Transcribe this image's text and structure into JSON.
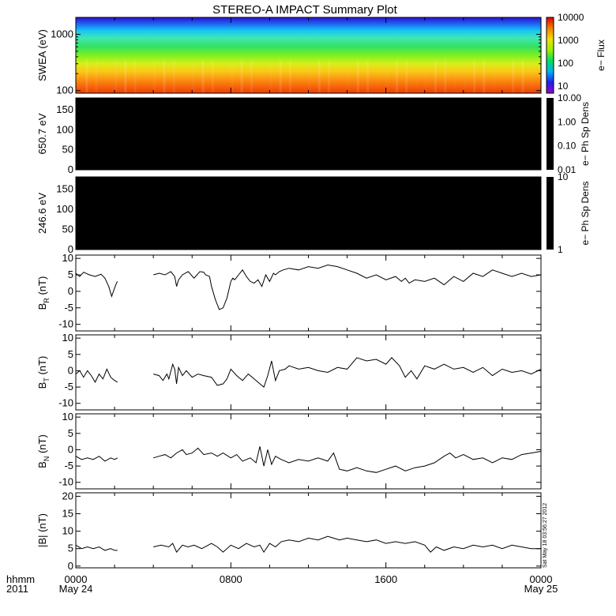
{
  "title": "STEREO-A IMPACT Summary Plot",
  "stamp": "Sat May 18 03:56:27 2012",
  "x_axis": {
    "row1_label": "hhmm",
    "row2_label": "2011",
    "ticks": [
      {
        "t": 0,
        "label": "0000",
        "sub": "May 24"
      },
      {
        "t": 8,
        "label": "0800",
        "sub": ""
      },
      {
        "t": 16,
        "label": "1600",
        "sub": ""
      },
      {
        "t": 24,
        "label": "0000",
        "sub": "May 25"
      }
    ],
    "range_hours": [
      0,
      24
    ]
  },
  "chart_data": [
    {
      "type": "heatmap",
      "panel": "swea",
      "ylabel": "SWEA (eV)",
      "ylim": [
        90,
        2000
      ],
      "yscale": "log",
      "yticks": [
        100,
        1000
      ],
      "ytick_labels": [
        "100",
        "1000"
      ],
      "colorbar": {
        "label": "e− Flux",
        "scale": "log",
        "range": [
          5,
          10000
        ],
        "ticks": [
          10,
          100,
          1000,
          10000
        ],
        "tick_labels": [
          "10",
          "100",
          "1000",
          "10000"
        ],
        "colormap": "rainbow"
      },
      "bands": [
        {
          "energy_eV": 1900,
          "color": "#2a1fd6"
        },
        {
          "energy_eV": 1500,
          "color": "#1a6ef5"
        },
        {
          "energy_eV": 1150,
          "color": "#19c8f0"
        },
        {
          "energy_eV": 850,
          "color": "#3fe8b0"
        },
        {
          "energy_eV": 600,
          "color": "#35e060"
        },
        {
          "energy_eV": 420,
          "color": "#7ef020"
        },
        {
          "energy_eV": 300,
          "color": "#d8ef18"
        },
        {
          "energy_eV": 220,
          "color": "#fbc818"
        },
        {
          "energy_eV": 150,
          "color": "#fb8a10"
        },
        {
          "energy_eV": 110,
          "color": "#f55a0a"
        },
        {
          "energy_eV": 92,
          "color": "#e8420a"
        }
      ]
    },
    {
      "type": "heatmap",
      "panel": "pad650",
      "ylabel": "650.7 eV",
      "ylim": [
        0,
        180
      ],
      "yticks": [
        0,
        50,
        100,
        150
      ],
      "colorbar": {
        "label": "e− Ph Sp Dens",
        "scale": "log",
        "ticks": [
          0.01,
          0.1,
          1,
          10
        ],
        "tick_labels": [
          "0.01",
          "0.10",
          "1.00",
          "10.00"
        ]
      },
      "fill": "#000000"
    },
    {
      "type": "heatmap",
      "panel": "pad246",
      "ylabel": "246.6 eV",
      "ylim": [
        0,
        180
      ],
      "yticks": [
        0,
        50,
        100,
        150
      ],
      "colorbar": {
        "label": "e− Ph Sp Dens",
        "scale": "log",
        "ticks": [
          1,
          10
        ],
        "tick_labels": [
          "1",
          "10"
        ]
      },
      "fill": "#000000"
    },
    {
      "type": "line",
      "panel": "br",
      "ylabel_main": "B",
      "ylabel_sub": "R",
      "ylabel_unit": " (nT)",
      "ylim": [
        -12,
        11
      ],
      "yticks": [
        -10,
        -5,
        0,
        5,
        10
      ],
      "segments": [
        {
          "x": [
            0,
            0.2,
            0.4,
            0.7,
            1.0,
            1.3,
            1.5,
            1.7,
            1.85,
            2.0,
            2.1,
            2.15
          ],
          "y": [
            5.5,
            4.5,
            5.8,
            5.0,
            4.5,
            5.2,
            4.0,
            1.5,
            -1.5,
            1.0,
            2.5,
            3.0
          ]
        },
        {
          "x": [
            4.0,
            4.3,
            4.6,
            4.9,
            5.1,
            5.2,
            5.3,
            5.5,
            5.8,
            6.1,
            6.4,
            6.6,
            6.7,
            6.9,
            7.0,
            7.2,
            7.4,
            7.6,
            7.8,
            7.9,
            8.0,
            8.1,
            8.2,
            8.4,
            8.6,
            8.8,
            9.0,
            9.2,
            9.4,
            9.6,
            9.8,
            10.0,
            10.2,
            10.3,
            10.5,
            10.7,
            11.0,
            11.5,
            12.0,
            12.5,
            13.0,
            13.5,
            14.0,
            14.5,
            15.0,
            15.5,
            16.0,
            16.5,
            16.8,
            17.0,
            17.2,
            17.5,
            18.0,
            18.5,
            19.0,
            19.5,
            20.0,
            20.5,
            21.0,
            21.5,
            22.0,
            22.5,
            23.0,
            23.5,
            24.0
          ],
          "y": [
            5.0,
            5.5,
            5.0,
            6.0,
            4.5,
            1.5,
            3.5,
            5.0,
            6.0,
            4.0,
            6.0,
            5.8,
            5.0,
            4.5,
            1.5,
            -2.5,
            -5.5,
            -5.0,
            -2.0,
            0.5,
            3.0,
            4.0,
            3.5,
            5.0,
            6.5,
            4.5,
            3.0,
            2.5,
            3.5,
            1.5,
            5.0,
            3.0,
            5.5,
            5.0,
            6.0,
            6.5,
            7.0,
            6.5,
            7.5,
            7.0,
            8.0,
            7.5,
            6.5,
            5.5,
            4.0,
            5.0,
            3.5,
            4.5,
            3.0,
            4.0,
            2.5,
            3.5,
            3.0,
            4.0,
            2.0,
            4.5,
            3.0,
            5.5,
            4.5,
            6.5,
            5.5,
            4.5,
            5.5,
            4.5,
            5.0
          ]
        }
      ]
    },
    {
      "type": "line",
      "panel": "bt",
      "ylabel_main": "B",
      "ylabel_sub": "T",
      "ylabel_unit": " (nT)",
      "ylim": [
        -12,
        11
      ],
      "yticks": [
        -10,
        -5,
        0,
        5,
        10
      ],
      "segments": [
        {
          "x": [
            0,
            0.2,
            0.4,
            0.6,
            0.8,
            1.0,
            1.2,
            1.4,
            1.6,
            1.8,
            2.0,
            2.15
          ],
          "y": [
            -1.0,
            0.0,
            -2.0,
            0.0,
            -1.5,
            -3.5,
            -1.0,
            -2.5,
            0.5,
            -2.0,
            -3.0,
            -3.5
          ]
        },
        {
          "x": [
            4.0,
            4.3,
            4.5,
            4.7,
            4.8,
            5.0,
            5.1,
            5.2,
            5.3,
            5.5,
            5.7,
            6.0,
            6.3,
            6.6,
            7.0,
            7.3,
            7.6,
            7.8,
            8.0,
            8.3,
            8.6,
            8.9,
            9.2,
            9.5,
            9.7,
            9.9,
            10.1,
            10.3,
            10.5,
            10.8,
            11.0,
            11.5,
            12.0,
            12.5,
            13.0,
            13.5,
            14.0,
            14.5,
            15.0,
            15.5,
            16.0,
            16.3,
            16.7,
            17.0,
            17.3,
            17.6,
            18.0,
            18.5,
            19.0,
            19.5,
            20.0,
            20.5,
            21.0,
            21.5,
            22.0,
            22.5,
            23.0,
            23.5,
            24.0
          ],
          "y": [
            -1.0,
            -1.5,
            -3.0,
            -1.0,
            -2.5,
            2.0,
            0.5,
            -4.0,
            1.0,
            -1.5,
            0.0,
            -2.0,
            -1.0,
            -1.5,
            -2.0,
            -4.5,
            -4.0,
            -2.5,
            0.5,
            -1.5,
            -3.0,
            -1.0,
            -2.5,
            -4.0,
            -5.0,
            -1.5,
            3.0,
            -3.0,
            0.0,
            0.5,
            1.5,
            0.5,
            1.0,
            0.0,
            -0.5,
            1.0,
            0.5,
            4.0,
            3.0,
            3.5,
            2.0,
            4.0,
            1.5,
            -2.0,
            0.0,
            -2.5,
            1.5,
            0.5,
            2.0,
            0.5,
            1.0,
            -0.5,
            1.0,
            -1.5,
            0.5,
            -0.5,
            0.0,
            -1.0,
            0.5
          ]
        }
      ]
    },
    {
      "type": "line",
      "panel": "bn",
      "ylabel_main": "B",
      "ylabel_sub": "N",
      "ylabel_unit": " (nT)",
      "ylim": [
        -12,
        11
      ],
      "yticks": [
        -10,
        -5,
        0,
        5,
        10
      ],
      "segments": [
        {
          "x": [
            0,
            0.3,
            0.6,
            0.9,
            1.2,
            1.5,
            1.8,
            2.0,
            2.15
          ],
          "y": [
            -2.0,
            -3.0,
            -2.5,
            -3.0,
            -2.0,
            -3.5,
            -2.5,
            -3.0,
            -2.5
          ]
        },
        {
          "x": [
            4.0,
            4.3,
            4.6,
            4.9,
            5.2,
            5.5,
            5.7,
            6.0,
            6.3,
            6.6,
            7.0,
            7.3,
            7.6,
            8.0,
            8.3,
            8.6,
            9.0,
            9.3,
            9.5,
            9.7,
            9.9,
            10.1,
            10.3,
            10.6,
            11.0,
            11.5,
            12.0,
            12.5,
            13.0,
            13.3,
            13.6,
            14.0,
            14.5,
            15.0,
            15.5,
            16.0,
            16.5,
            17.0,
            17.5,
            18.0,
            18.5,
            19.0,
            19.3,
            19.6,
            20.0,
            20.5,
            21.0,
            21.5,
            22.0,
            22.5,
            23.0,
            23.5,
            24.0
          ],
          "y": [
            -2.5,
            -2.0,
            -1.5,
            -2.5,
            -1.0,
            0.0,
            -1.5,
            -1.0,
            0.5,
            -1.5,
            -1.0,
            -2.0,
            -1.0,
            -2.5,
            -1.5,
            -3.5,
            -2.5,
            -4.0,
            1.0,
            -5.0,
            0.0,
            -4.5,
            -2.0,
            -3.0,
            -4.0,
            -3.0,
            -3.5,
            -2.5,
            -3.5,
            -1.0,
            -6.0,
            -6.5,
            -5.5,
            -6.5,
            -7.0,
            -6.0,
            -5.0,
            -6.5,
            -5.5,
            -5.0,
            -4.0,
            -2.0,
            -1.0,
            -2.5,
            -1.5,
            -3.0,
            -2.5,
            -4.0,
            -2.5,
            -3.0,
            -1.5,
            -1.0,
            -0.5
          ]
        }
      ]
    },
    {
      "type": "line",
      "panel": "bmag",
      "ylabel_main": "|B| (nT)",
      "ylim": [
        -0.5,
        21
      ],
      "yticks": [
        0,
        5,
        10,
        15,
        20
      ],
      "segments": [
        {
          "x": [
            0,
            0.3,
            0.6,
            0.9,
            1.2,
            1.5,
            1.8,
            2.0,
            2.15
          ],
          "y": [
            6.0,
            5.0,
            5.5,
            5.0,
            5.5,
            4.5,
            5.0,
            4.5,
            4.5
          ]
        },
        {
          "x": [
            4.0,
            4.4,
            4.8,
            5.0,
            5.2,
            5.5,
            5.8,
            6.1,
            6.5,
            7.0,
            7.3,
            7.6,
            8.0,
            8.4,
            8.8,
            9.2,
            9.5,
            9.7,
            10.0,
            10.3,
            10.6,
            11.0,
            11.5,
            12.0,
            12.5,
            13.0,
            13.3,
            13.6,
            14.0,
            14.5,
            15.0,
            15.5,
            16.0,
            16.5,
            17.0,
            17.5,
            18.0,
            18.3,
            18.6,
            19.0,
            19.5,
            20.0,
            20.5,
            21.0,
            21.5,
            22.0,
            22.5,
            23.0,
            23.5,
            24.0
          ],
          "y": [
            5.5,
            6.0,
            5.5,
            6.5,
            4.0,
            6.0,
            5.5,
            6.0,
            5.0,
            6.5,
            5.5,
            4.0,
            6.0,
            5.0,
            6.5,
            5.5,
            6.0,
            4.0,
            6.5,
            5.5,
            7.0,
            7.5,
            7.0,
            8.0,
            7.5,
            8.5,
            8.0,
            7.5,
            8.0,
            7.5,
            7.0,
            7.5,
            6.5,
            7.0,
            6.5,
            7.0,
            6.0,
            4.0,
            5.5,
            4.5,
            5.5,
            5.0,
            6.0,
            5.5,
            6.0,
            5.0,
            6.0,
            5.5,
            5.0,
            5.0
          ]
        }
      ]
    }
  ]
}
